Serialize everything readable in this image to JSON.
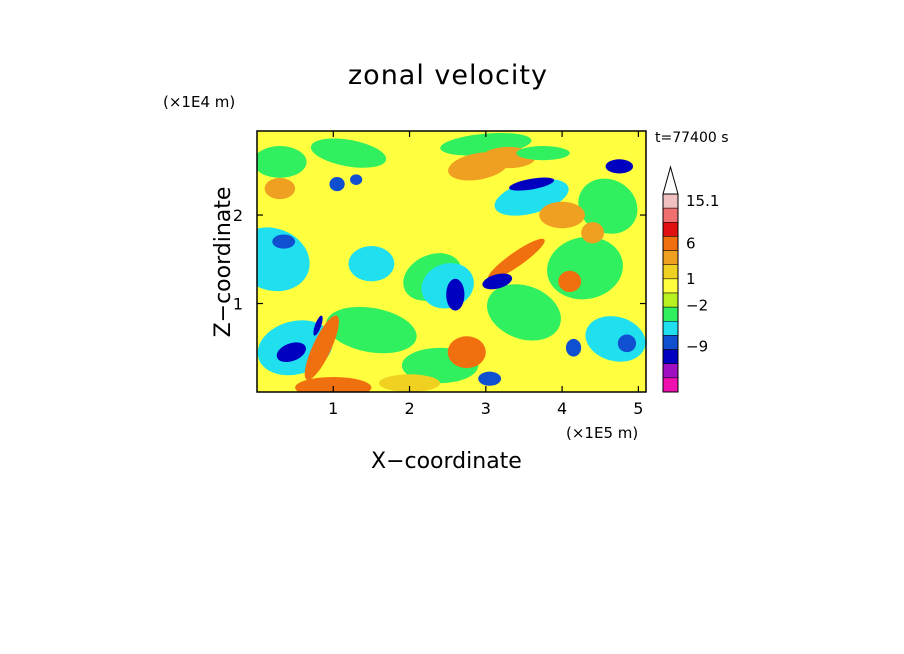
{
  "chart_data": {
    "type": "heatmap",
    "title": "zonal velocity",
    "xlabel": "X−coordinate",
    "ylabel": "Z−coordinate",
    "x_unit": "(×1E5 m)",
    "y_unit": "(×1E4 m)",
    "annotation": "t=77400 s",
    "xlim": [
      0,
      5.1
    ],
    "ylim": [
      0,
      2.95
    ],
    "x_ticks": [
      "1",
      "2",
      "3",
      "4",
      "5"
    ],
    "y_ticks": [
      "1",
      "2"
    ],
    "colorbar": {
      "labels": [
        "15.1",
        "6",
        "1",
        "−2",
        "−9"
      ],
      "levels": [
        {
          "color": "#f0c0c0"
        },
        {
          "color": "#f07070"
        },
        {
          "color": "#e01010"
        },
        {
          "color": "#f07010"
        },
        {
          "color": "#f0a020"
        },
        {
          "color": "#f0d020"
        },
        {
          "color": "#ffff40"
        },
        {
          "color": "#b8f020"
        },
        {
          "color": "#30f060"
        },
        {
          "color": "#20e0f0"
        },
        {
          "color": "#1050d0"
        },
        {
          "color": "#0000c0"
        },
        {
          "color": "#a010c0"
        },
        {
          "color": "#f010b0"
        }
      ],
      "extend": "max"
    }
  }
}
